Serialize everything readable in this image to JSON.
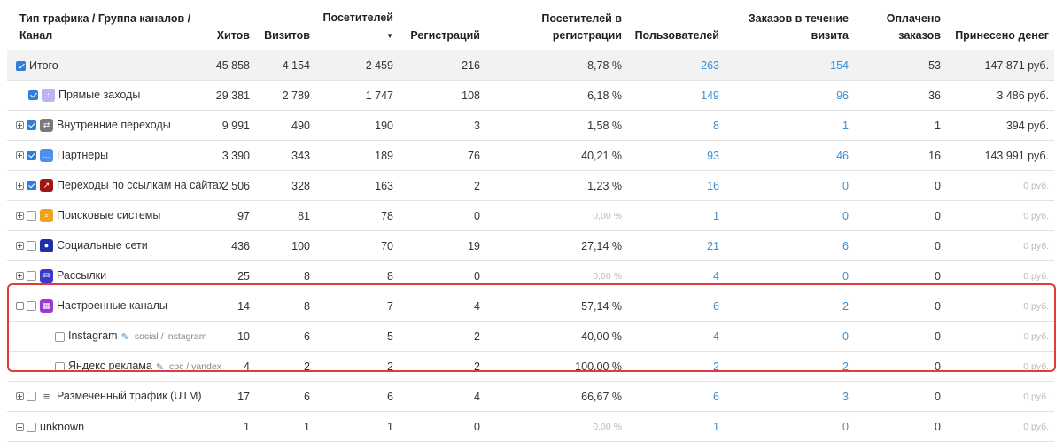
{
  "headers": {
    "channel": "Тип трафика / Группа каналов / Канал",
    "hits": "Хитов",
    "visits": "Визитов",
    "visitors": "Посетителей",
    "registrations": "Регистраций",
    "visitors_reg": "Посетителей в регистрации",
    "users": "Пользователей",
    "orders": "Заказов в течение визита",
    "paid": "Оплачено заказов",
    "revenue": "Принесено денег"
  },
  "rows": [
    {
      "name": "Итого",
      "level": 0,
      "expander": "",
      "checked": true,
      "icon": "",
      "icon_color": "",
      "hits": "45 858",
      "visits": "4 154",
      "visitors": "2 459",
      "registrations": "216",
      "visitors_reg": "8,78 %",
      "users": "263",
      "orders": "154",
      "paid": "53",
      "revenue": "147 871 руб.",
      "total": true
    },
    {
      "name": "Прямые заходы",
      "level": 1,
      "expander": "",
      "checked": true,
      "icon": "up-arrow-icon",
      "icon_color": "#b9b4f2",
      "hits": "29 381",
      "visits": "2 789",
      "visitors": "1 747",
      "registrations": "108",
      "visitors_reg": "6,18 %",
      "users": "149",
      "orders": "96",
      "paid": "36",
      "revenue": "3 486 руб."
    },
    {
      "name": "Внутренние переходы",
      "level": 0,
      "expander": "plus",
      "checked": true,
      "icon": "swap-icon",
      "icon_color": "#7a7a7a",
      "hits": "9 991",
      "visits": "490",
      "visitors": "190",
      "registrations": "3",
      "visitors_reg": "1,58 %",
      "users": "8",
      "orders": "1",
      "paid": "1",
      "revenue": "394 руб."
    },
    {
      "name": "Партнеры",
      "level": 0,
      "expander": "plus",
      "checked": true,
      "icon": "chat-icon",
      "icon_color": "#4d8ef0",
      "hits": "3 390",
      "visits": "343",
      "visitors": "189",
      "registrations": "76",
      "visitors_reg": "40,21 %",
      "users": "93",
      "orders": "46",
      "paid": "16",
      "revenue": "143 991 руб."
    },
    {
      "name": "Переходы по ссылкам на сайтах",
      "level": 0,
      "expander": "plus",
      "checked": true,
      "icon": "external-link-icon",
      "icon_color": "#a01515",
      "hits": "2 506",
      "visits": "328",
      "visitors": "163",
      "registrations": "2",
      "visitors_reg": "1,23 %",
      "users": "16",
      "orders": "0",
      "paid": "0",
      "revenue": "0 руб.",
      "revenue_muted": true
    },
    {
      "name": "Поисковые системы",
      "level": 0,
      "expander": "plus",
      "checked": false,
      "icon": "search-icon",
      "icon_color": "#f0a21e",
      "hits": "97",
      "visits": "81",
      "visitors": "78",
      "registrations": "0",
      "visitors_reg": "0,00 %",
      "visitors_reg_muted": true,
      "users": "1",
      "orders": "0",
      "paid": "0",
      "revenue": "0 руб.",
      "revenue_muted": true
    },
    {
      "name": "Социальные сети",
      "level": 0,
      "expander": "plus",
      "checked": false,
      "icon": "person-icon",
      "icon_color": "#1f2fa8",
      "hits": "436",
      "visits": "100",
      "visitors": "70",
      "registrations": "19",
      "visitors_reg": "27,14 %",
      "users": "21",
      "orders": "6",
      "paid": "0",
      "revenue": "0 руб.",
      "revenue_muted": true
    },
    {
      "name": "Рассылки",
      "level": 0,
      "expander": "plus",
      "checked": false,
      "icon": "mail-icon",
      "icon_color": "#3b3bc9",
      "hits": "25",
      "visits": "8",
      "visitors": "8",
      "registrations": "0",
      "visitors_reg": "0,00 %",
      "visitors_reg_muted": true,
      "users": "4",
      "orders": "0",
      "paid": "0",
      "revenue": "0 руб.",
      "revenue_muted": true
    },
    {
      "name": "Настроенные каналы",
      "level": 0,
      "expander": "minus",
      "checked": false,
      "icon": "grid-icon",
      "icon_color": "#9b39d6",
      "hits": "14",
      "visits": "8",
      "visitors": "7",
      "registrations": "4",
      "visitors_reg": "57,14 %",
      "users": "6",
      "orders": "2",
      "paid": "0",
      "revenue": "0 руб.",
      "revenue_muted": true
    },
    {
      "name": "Instagram",
      "level": 2,
      "expander": "",
      "checked": false,
      "icon": "",
      "icon_color": "",
      "edit": true,
      "utm": "social / instagram",
      "hits": "10",
      "visits": "6",
      "visitors": "5",
      "registrations": "2",
      "visitors_reg": "40,00 %",
      "users": "4",
      "orders": "0",
      "paid": "0",
      "revenue": "0 руб.",
      "revenue_muted": true
    },
    {
      "name": "Яндекс реклама",
      "level": 2,
      "expander": "",
      "checked": false,
      "icon": "",
      "icon_color": "",
      "edit": true,
      "utm": "cpc / yandex",
      "hits": "4",
      "visits": "2",
      "visitors": "2",
      "registrations": "2",
      "visitors_reg": "100,00 %",
      "users": "2",
      "orders": "2",
      "paid": "0",
      "revenue": "0 руб.",
      "revenue_muted": true
    },
    {
      "name": "Размеченный трафик (UTM)",
      "level": 0,
      "expander": "plus",
      "checked": false,
      "icon": "list-icon",
      "icon_color": "#555555",
      "hits": "17",
      "visits": "6",
      "visitors": "6",
      "registrations": "4",
      "visitors_reg": "66,67 %",
      "users": "6",
      "orders": "3",
      "paid": "0",
      "revenue": "0 руб.",
      "revenue_muted": true
    },
    {
      "name": "unknown",
      "level": 0,
      "expander": "minus",
      "checked": false,
      "icon": "",
      "icon_color": "",
      "hits": "1",
      "visits": "1",
      "visitors": "1",
      "registrations": "0",
      "visitors_reg": "0,00 %",
      "visitors_reg_muted": true,
      "users": "1",
      "orders": "0",
      "paid": "0",
      "revenue": "0 руб.",
      "revenue_muted": true
    }
  ]
}
